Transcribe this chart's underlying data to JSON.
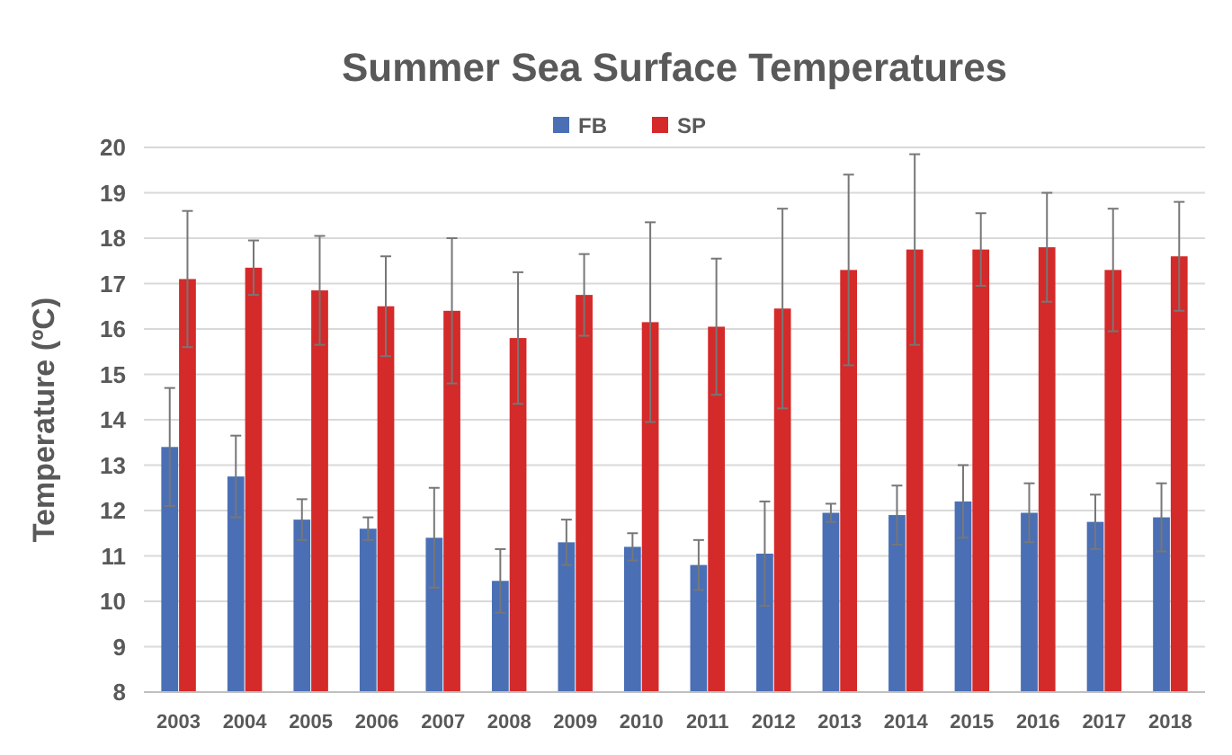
{
  "chart_data": {
    "type": "bar",
    "title": "Summer Sea Surface Temperatures",
    "ylabel": "Temperature (ºC)",
    "categories": [
      "2003",
      "2004",
      "2005",
      "2006",
      "2007",
      "2008",
      "2009",
      "2010",
      "2011",
      "2012",
      "2013",
      "2014",
      "2015",
      "2016",
      "2017",
      "2018"
    ],
    "series": [
      {
        "name": "FB",
        "color": "#4a6fb5",
        "values": [
          13.4,
          12.75,
          11.8,
          11.6,
          11.4,
          10.45,
          11.3,
          11.2,
          10.8,
          11.05,
          11.95,
          11.9,
          12.2,
          11.95,
          11.75,
          11.85
        ],
        "errors": [
          1.3,
          0.9,
          0.45,
          0.25,
          1.1,
          0.7,
          0.5,
          0.3,
          0.55,
          1.15,
          0.2,
          0.65,
          0.8,
          0.65,
          0.6,
          0.75
        ]
      },
      {
        "name": "SP",
        "color": "#d42a2a",
        "values": [
          17.1,
          17.35,
          16.85,
          16.5,
          16.4,
          15.8,
          16.75,
          16.15,
          16.05,
          16.45,
          17.3,
          17.75,
          17.75,
          17.8,
          17.3,
          17.6
        ],
        "errors": [
          1.5,
          0.6,
          1.2,
          1.1,
          1.6,
          1.45,
          0.9,
          2.2,
          1.5,
          2.2,
          2.1,
          2.1,
          0.8,
          1.2,
          1.35,
          1.2
        ]
      }
    ],
    "ylim": [
      8,
      20
    ],
    "yticks": [
      8,
      9,
      10,
      11,
      12,
      13,
      14,
      15,
      16,
      17,
      18,
      19,
      20
    ],
    "grid": "y",
    "legend": "top"
  }
}
